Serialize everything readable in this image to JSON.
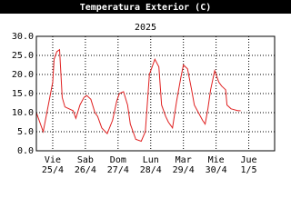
{
  "chart_data": {
    "type": "line",
    "title": "Temperatura Exterior (C)",
    "subtitle": "2025",
    "x": [
      0,
      5,
      12,
      13,
      15,
      17,
      19,
      21,
      27,
      29,
      32,
      35,
      37,
      40,
      43,
      45,
      48,
      52,
      56,
      59,
      61,
      64,
      67,
      69,
      73,
      77,
      80,
      83,
      87,
      90,
      92,
      95,
      97,
      100,
      103,
      106,
      108,
      111,
      114,
      116,
      119,
      122,
      124,
      126,
      128,
      131,
      134,
      136,
      139,
      140,
      143,
      148,
      150
    ],
    "series": [
      {
        "name": "Temperatura",
        "color": "#e02020",
        "values": [
          10,
          5,
          18,
          24,
          26,
          26.5,
          14,
          11.5,
          10.5,
          8.5,
          12,
          14,
          14.5,
          13.5,
          10,
          9,
          6,
          4.5,
          8,
          13,
          15,
          15.5,
          12,
          7,
          3,
          2.5,
          5,
          20,
          24,
          22,
          12,
          9,
          7.5,
          6,
          13,
          19,
          22.5,
          21.5,
          16,
          12,
          10,
          8,
          7,
          11,
          16,
          21,
          18,
          17,
          16,
          12,
          11,
          10.5,
          10.5
        ]
      }
    ],
    "xlim": [
      0,
      175
    ],
    "xticks": [
      {
        "value": 12,
        "label": "Vie"
      },
      {
        "value": 36,
        "label": "Sab"
      },
      {
        "value": 60,
        "label": "Dom"
      },
      {
        "value": 84,
        "label": "Lun"
      },
      {
        "value": 108,
        "label": "Mar"
      },
      {
        "value": 132,
        "label": "Mie"
      },
      {
        "value": 156,
        "label": "Jue"
      }
    ],
    "xtick_sublabels": [
      "25/4",
      "26/4",
      "27/4",
      "28/4",
      "29/4",
      "30/4",
      "1/5"
    ],
    "ylim": [
      0,
      30
    ],
    "yticks": [
      {
        "value": 0,
        "label": "0.0"
      },
      {
        "value": 5,
        "label": "5.0"
      },
      {
        "value": 10,
        "label": "10.0"
      },
      {
        "value": 15,
        "label": "15.0"
      },
      {
        "value": 20,
        "label": "20.0"
      },
      {
        "value": 25,
        "label": "25.0"
      },
      {
        "value": 30,
        "label": "30.0"
      }
    ],
    "grid": true
  }
}
